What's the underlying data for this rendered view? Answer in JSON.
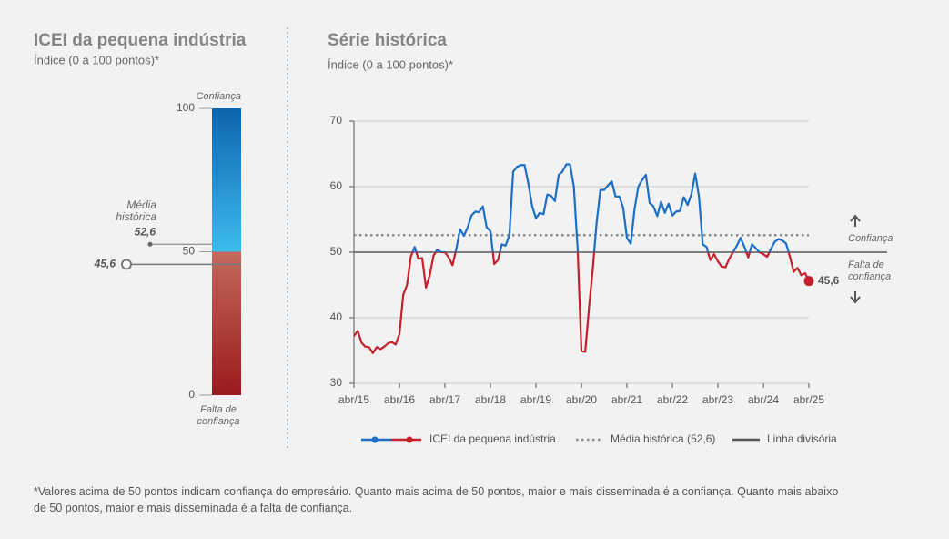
{
  "chart_data": [
    {
      "type": "gauge",
      "title": "ICEI da pequena indústria",
      "subtitle": "Índice (0 a 100 pontos)*",
      "ylim": [
        0,
        100
      ],
      "yticks": [
        0,
        50,
        100
      ],
      "top_label": "Confiança",
      "bottom_label": "Falta de confiança",
      "value": 45.6,
      "value_label": "45,6",
      "mean": 52.6,
      "mean_name": "Média histórica",
      "mean_label": "52,6",
      "color": "#c6202b"
    },
    {
      "type": "line",
      "title": "Série histórica",
      "subtitle": "Índice (0 a 100 pontos)*",
      "categories": [
        "abr/15",
        null,
        null,
        null,
        null,
        null,
        null,
        null,
        null,
        null,
        null,
        null,
        "abr/16",
        null,
        null,
        null,
        null,
        null,
        null,
        null,
        null,
        null,
        null,
        null,
        "abr/17",
        null,
        null,
        null,
        null,
        null,
        null,
        null,
        null,
        null,
        null,
        null,
        "abr/18",
        null,
        null,
        null,
        null,
        null,
        null,
        null,
        null,
        null,
        null,
        null,
        "abr/19",
        null,
        null,
        null,
        null,
        null,
        null,
        null,
        null,
        null,
        null,
        null,
        "abr/20",
        null,
        null,
        null,
        null,
        null,
        null,
        null,
        null,
        null,
        null,
        null,
        "abr/21",
        null,
        null,
        null,
        null,
        null,
        null,
        null,
        null,
        null,
        null,
        null,
        "abr/22",
        null,
        null,
        null,
        null,
        null,
        null,
        null,
        null,
        null,
        null,
        null,
        "abr/23",
        null,
        null,
        null,
        null,
        null,
        null,
        null,
        null,
        null,
        null,
        null,
        "abr/24",
        null,
        null,
        null,
        null,
        null,
        null,
        null,
        null,
        null,
        null,
        null,
        "abr/25"
      ],
      "series": [
        {
          "name": "ICEI da pequena indústria",
          "color": "#1c6fc4",
          "color_below": "#c6202b",
          "end_label": "45,6",
          "values": [
            37.2,
            38.0,
            36.2,
            35.6,
            35.5,
            34.6,
            35.5,
            35.2,
            35.6,
            36.1,
            36.3,
            35.9,
            37.5,
            43.5,
            45.0,
            49.3,
            50.8,
            49.0,
            49.1,
            44.6,
            46.5,
            49.5,
            50.4,
            50.0,
            50.0,
            49.2,
            48.0,
            50.5,
            53.5,
            52.5,
            53.8,
            55.6,
            56.2,
            56.1,
            57.0,
            53.8,
            53.2,
            48.2,
            48.8,
            51.2,
            51.0,
            52.6,
            62.3,
            63.0,
            63.3,
            63.3,
            60.5,
            57.0,
            55.2,
            56.0,
            55.8,
            58.8,
            58.6,
            57.8,
            61.8,
            62.3,
            63.4,
            63.4,
            60.0,
            50.5,
            34.9,
            34.8,
            41.5,
            47.5,
            54.5,
            59.5,
            59.5,
            60.2,
            60.8,
            58.5,
            58.5,
            56.8,
            52.2,
            51.3,
            56.5,
            60.0,
            61.0,
            61.8,
            57.5,
            57.0,
            55.5,
            57.7,
            56.0,
            57.4,
            55.6,
            56.2,
            56.3,
            58.4,
            57.2,
            58.8,
            62.0,
            58.5,
            51.2,
            50.8,
            48.8,
            49.7,
            48.6,
            47.8,
            47.7,
            49.0,
            50.0,
            51.0,
            52.2,
            50.8,
            49.2,
            51.2,
            50.6,
            50.0,
            49.7,
            49.3,
            50.5,
            51.6,
            52.0,
            51.8,
            51.3,
            49.3,
            47.0,
            47.6,
            46.5,
            46.8,
            45.6
          ]
        }
      ],
      "ylim": [
        30,
        70
      ],
      "yticks": [
        30,
        40,
        50,
        60,
        70
      ],
      "grid": true,
      "reference_lines": [
        {
          "name": "Média histórica (52,6)",
          "value": 52.6,
          "style": "dotted",
          "color": "#8c8c8c"
        },
        {
          "name": "Linha divisória",
          "value": 50,
          "style": "solid",
          "color": "#555555"
        }
      ],
      "annotations": {
        "above": "Confiança",
        "below": "Falta de confiança"
      }
    },
    {
      "type": "note",
      "footnote": "*Valores acima de 50 pontos indicam confiança do empresário. Quanto mais acima de 50 pontos, maior e mais disseminada é a confiança. Quanto mais abaixo de 50 pontos, maior e mais disseminada é a falta de confiança."
    }
  ]
}
